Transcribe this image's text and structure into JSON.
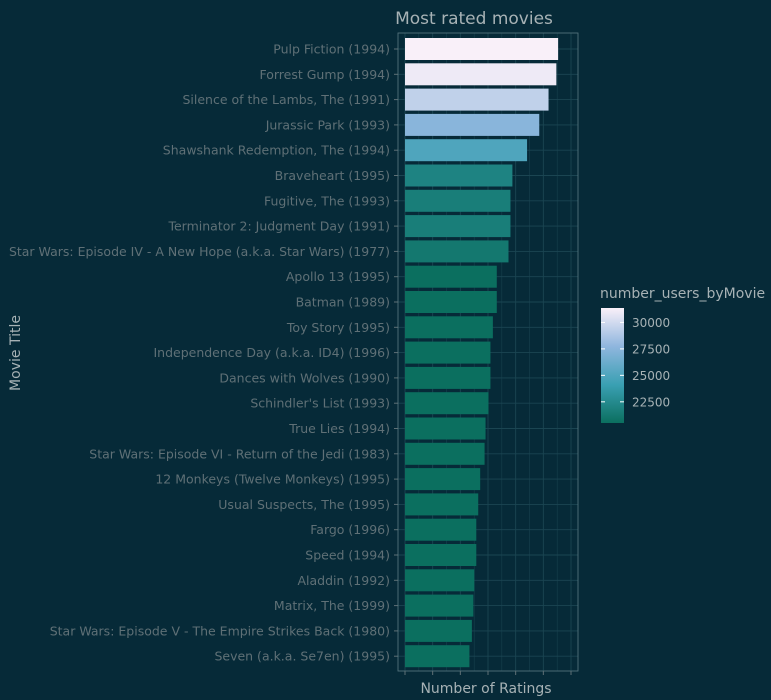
{
  "chart_data": {
    "type": "bar",
    "orientation": "horizontal",
    "title": "Most rated movies",
    "xlabel": "Number of Ratings",
    "ylabel": "Movie Title",
    "xlim": [
      0,
      34000
    ],
    "grid": true,
    "categories": [
      "Pulp Fiction (1994)",
      "Forrest Gump (1994)",
      "Silence of the Lambs, The (1991)",
      "Jurassic Park (1993)",
      "Shawshank Redemption, The (1994)",
      "Braveheart (1995)",
      "Fugitive, The (1993)",
      "Terminator 2: Judgment Day (1991)",
      "Star Wars: Episode IV - A New Hope (a.k.a. Star Wars) (1977)",
      "Apollo 13 (1995)",
      "Batman (1989)",
      "Toy Story (1995)",
      "Independence Day (a.k.a. ID4) (1996)",
      "Dances with Wolves (1990)",
      "Schindler's List (1993)",
      "True Lies (1994)",
      "Star Wars: Episode VI - Return of the Jedi (1983)",
      "12 Monkeys (Twelve Monkeys) (1995)",
      "Usual Suspects, The (1995)",
      "Fargo (1996)",
      "Speed (1994)",
      "Aladdin (1992)",
      "Matrix, The (1999)",
      "Star Wars: Episode V - The Empire Strikes Back (1980)",
      "Seven (a.k.a. Se7en) (1995)"
    ],
    "values": [
      31362,
      31000,
      29400,
      27500,
      25000,
      22000,
      21600,
      21600,
      21200,
      18800,
      18800,
      18000,
      17500,
      17500,
      17100,
      16500,
      16300,
      15400,
      15000,
      14600,
      14600,
      14200,
      14000,
      13700,
      13200
    ],
    "legend": {
      "title": "number_users_byMovie",
      "placement": "right",
      "min": 20500,
      "max": 31362,
      "ticks": [
        22500,
        25000,
        27500,
        30000
      ],
      "colors": [
        "#0b6f5f",
        "#3aa0b3",
        "#8fb6de",
        "#f9f0f9"
      ]
    }
  },
  "colors": {
    "background": "#062a38",
    "grid": "#1b4552",
    "text_muted": "#5f7076",
    "text_light": "#a7b2b5"
  }
}
